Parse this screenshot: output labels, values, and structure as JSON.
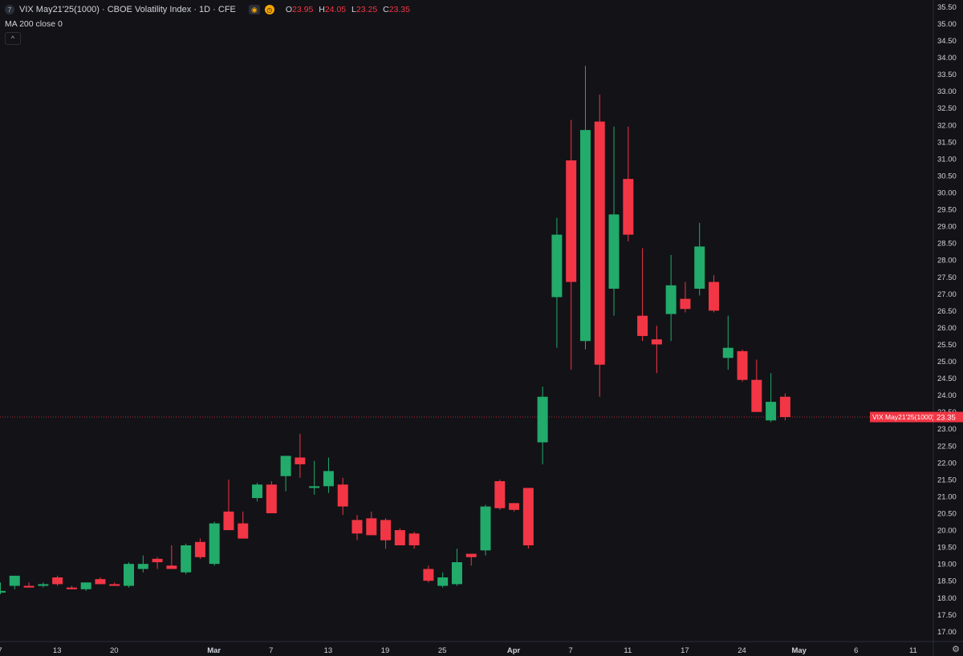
{
  "header": {
    "symbol_icon": "7",
    "title": "VIX May21'25(1000) · CBOE Volatility Index · 1D · CFE",
    "ohlc": [
      {
        "k": "O",
        "v": "23.95"
      },
      {
        "k": "H",
        "v": "24.05"
      },
      {
        "k": "L",
        "v": "23.25"
      },
      {
        "k": "C",
        "v": "23.35"
      }
    ],
    "ma_label": "MA 200 close 0",
    "collapse_icon": "^"
  },
  "colors": {
    "up": "#22ab6b",
    "down": "#f23645",
    "background": "#131217",
    "axis_text": "#d1d4dc"
  },
  "chart_data": {
    "type": "candlestick",
    "ylim": [
      16.7,
      35.7
    ],
    "y_ticks": [
      "17.00",
      "17.50",
      "18.00",
      "18.50",
      "19.00",
      "19.50",
      "20.00",
      "20.50",
      "21.00",
      "21.50",
      "22.00",
      "22.50",
      "23.00",
      "23.50",
      "24.00",
      "24.50",
      "25.00",
      "25.50",
      "26.00",
      "26.50",
      "27.00",
      "27.50",
      "28.00",
      "28.50",
      "29.00",
      "29.50",
      "30.00",
      "30.50",
      "31.00",
      "31.50",
      "32.00",
      "32.50",
      "33.00",
      "33.50",
      "34.00",
      "34.50",
      "35.00",
      "35.50"
    ],
    "x_ticks": [
      {
        "label": "7",
        "i": 0
      },
      {
        "label": "13",
        "i": 4
      },
      {
        "label": "20",
        "i": 8
      },
      {
        "label": "Mar",
        "i": 15
      },
      {
        "label": "7",
        "i": 19
      },
      {
        "label": "13",
        "i": 23
      },
      {
        "label": "19",
        "i": 27
      },
      {
        "label": "25",
        "i": 31
      },
      {
        "label": "Apr",
        "i": 36
      },
      {
        "label": "7",
        "i": 40
      },
      {
        "label": "11",
        "i": 44
      },
      {
        "label": "17",
        "i": 48
      },
      {
        "label": "24",
        "i": 52
      },
      {
        "label": "May",
        "i": 56
      },
      {
        "label": "6",
        "i": 60
      },
      {
        "label": "11",
        "i": 64
      }
    ],
    "candles": [
      {
        "o": 18.15,
        "h": 18.45,
        "l": 18.1,
        "c": 18.2
      },
      {
        "o": 18.35,
        "h": 18.65,
        "l": 18.25,
        "c": 18.65
      },
      {
        "o": 18.35,
        "h": 18.45,
        "l": 18.3,
        "c": 18.3
      },
      {
        "o": 18.35,
        "h": 18.45,
        "l": 18.3,
        "c": 18.4
      },
      {
        "o": 18.6,
        "h": 18.65,
        "l": 18.35,
        "c": 18.4
      },
      {
        "o": 18.3,
        "h": 18.35,
        "l": 18.25,
        "c": 18.25
      },
      {
        "o": 18.25,
        "h": 18.45,
        "l": 18.2,
        "c": 18.45
      },
      {
        "o": 18.55,
        "h": 18.6,
        "l": 18.4,
        "c": 18.4
      },
      {
        "o": 18.4,
        "h": 18.45,
        "l": 18.35,
        "c": 18.35
      },
      {
        "o": 18.35,
        "h": 19.05,
        "l": 18.3,
        "c": 19.0
      },
      {
        "o": 18.85,
        "h": 19.25,
        "l": 18.75,
        "c": 19.0
      },
      {
        "o": 19.15,
        "h": 19.2,
        "l": 18.85,
        "c": 19.05
      },
      {
        "o": 18.95,
        "h": 19.55,
        "l": 18.85,
        "c": 18.85
      },
      {
        "o": 18.75,
        "h": 19.6,
        "l": 18.7,
        "c": 19.55
      },
      {
        "o": 19.65,
        "h": 19.75,
        "l": 19.15,
        "c": 19.2
      },
      {
        "o": 19.0,
        "h": 20.25,
        "l": 18.95,
        "c": 20.2
      },
      {
        "o": 20.55,
        "h": 21.5,
        "l": 20.05,
        "c": 20.0
      },
      {
        "o": 20.2,
        "h": 20.55,
        "l": 19.9,
        "c": 19.75
      },
      {
        "o": 20.95,
        "h": 21.4,
        "l": 20.85,
        "c": 21.35
      },
      {
        "o": 21.35,
        "h": 21.45,
        "l": 20.5,
        "c": 20.5
      },
      {
        "o": 21.6,
        "h": 22.05,
        "l": 21.15,
        "c": 22.2
      },
      {
        "o": 22.15,
        "h": 22.85,
        "l": 21.55,
        "c": 21.95
      },
      {
        "o": 21.25,
        "h": 22.05,
        "l": 21.05,
        "c": 21.3
      },
      {
        "o": 21.3,
        "h": 22.15,
        "l": 21.1,
        "c": 21.75
      },
      {
        "o": 21.35,
        "h": 21.55,
        "l": 20.45,
        "c": 20.7
      },
      {
        "o": 20.3,
        "h": 20.45,
        "l": 19.7,
        "c": 19.9
      },
      {
        "o": 20.35,
        "h": 20.55,
        "l": 19.95,
        "c": 19.85
      },
      {
        "o": 20.3,
        "h": 20.35,
        "l": 19.45,
        "c": 19.7
      },
      {
        "o": 20.0,
        "h": 20.05,
        "l": 19.6,
        "c": 19.55
      },
      {
        "o": 19.9,
        "h": 19.95,
        "l": 19.45,
        "c": 19.55
      },
      {
        "o": 18.85,
        "h": 18.95,
        "l": 18.45,
        "c": 18.5
      },
      {
        "o": 18.35,
        "h": 18.75,
        "l": 18.3,
        "c": 18.6
      },
      {
        "o": 18.4,
        "h": 19.45,
        "l": 18.35,
        "c": 19.05
      },
      {
        "o": 19.3,
        "h": 19.3,
        "l": 18.95,
        "c": 19.2
      },
      {
        "o": 19.4,
        "h": 20.75,
        "l": 19.25,
        "c": 20.7
      },
      {
        "o": 21.45,
        "h": 21.5,
        "l": 20.6,
        "c": 20.65
      },
      {
        "o": 20.8,
        "h": 20.8,
        "l": 20.55,
        "c": 20.6
      },
      {
        "o": 21.25,
        "h": 21.25,
        "l": 19.45,
        "c": 19.55
      },
      {
        "o": 22.6,
        "h": 24.25,
        "l": 21.95,
        "c": 23.95
      },
      {
        "o": 26.9,
        "h": 29.25,
        "l": 25.4,
        "c": 28.75
      },
      {
        "o": 30.95,
        "h": 32.15,
        "l": 24.75,
        "c": 27.35
      },
      {
        "o": 25.6,
        "h": 33.75,
        "l": 25.35,
        "c": 31.85
      },
      {
        "o": 32.1,
        "h": 32.9,
        "l": 23.95,
        "c": 24.9
      },
      {
        "o": 27.15,
        "h": 31.95,
        "l": 26.35,
        "c": 29.35
      },
      {
        "o": 30.4,
        "h": 31.95,
        "l": 28.55,
        "c": 28.75
      },
      {
        "o": 26.35,
        "h": 28.35,
        "l": 25.6,
        "c": 25.75
      },
      {
        "o": 25.65,
        "h": 26.05,
        "l": 24.65,
        "c": 25.5
      },
      {
        "o": 26.4,
        "h": 28.15,
        "l": 25.6,
        "c": 27.25
      },
      {
        "o": 26.85,
        "h": 27.35,
        "l": 26.45,
        "c": 26.55
      },
      {
        "o": 27.15,
        "h": 29.1,
        "l": 26.95,
        "c": 28.4
      },
      {
        "o": 27.35,
        "h": 27.55,
        "l": 26.45,
        "c": 26.5
      },
      {
        "o": 25.1,
        "h": 26.35,
        "l": 24.75,
        "c": 25.4
      },
      {
        "o": 25.3,
        "h": 25.35,
        "l": 24.4,
        "c": 24.45
      },
      {
        "o": 24.45,
        "h": 25.05,
        "l": 23.5,
        "c": 23.5
      },
      {
        "o": 23.25,
        "h": 24.65,
        "l": 23.2,
        "c": 23.8
      },
      {
        "o": 23.95,
        "h": 24.05,
        "l": 23.25,
        "c": 23.35
      }
    ],
    "last_price": 23.35,
    "price_label_series": "VIX May21'25(1000)",
    "price_label_value": "23.35",
    "settings_icon": "gear-icon"
  }
}
